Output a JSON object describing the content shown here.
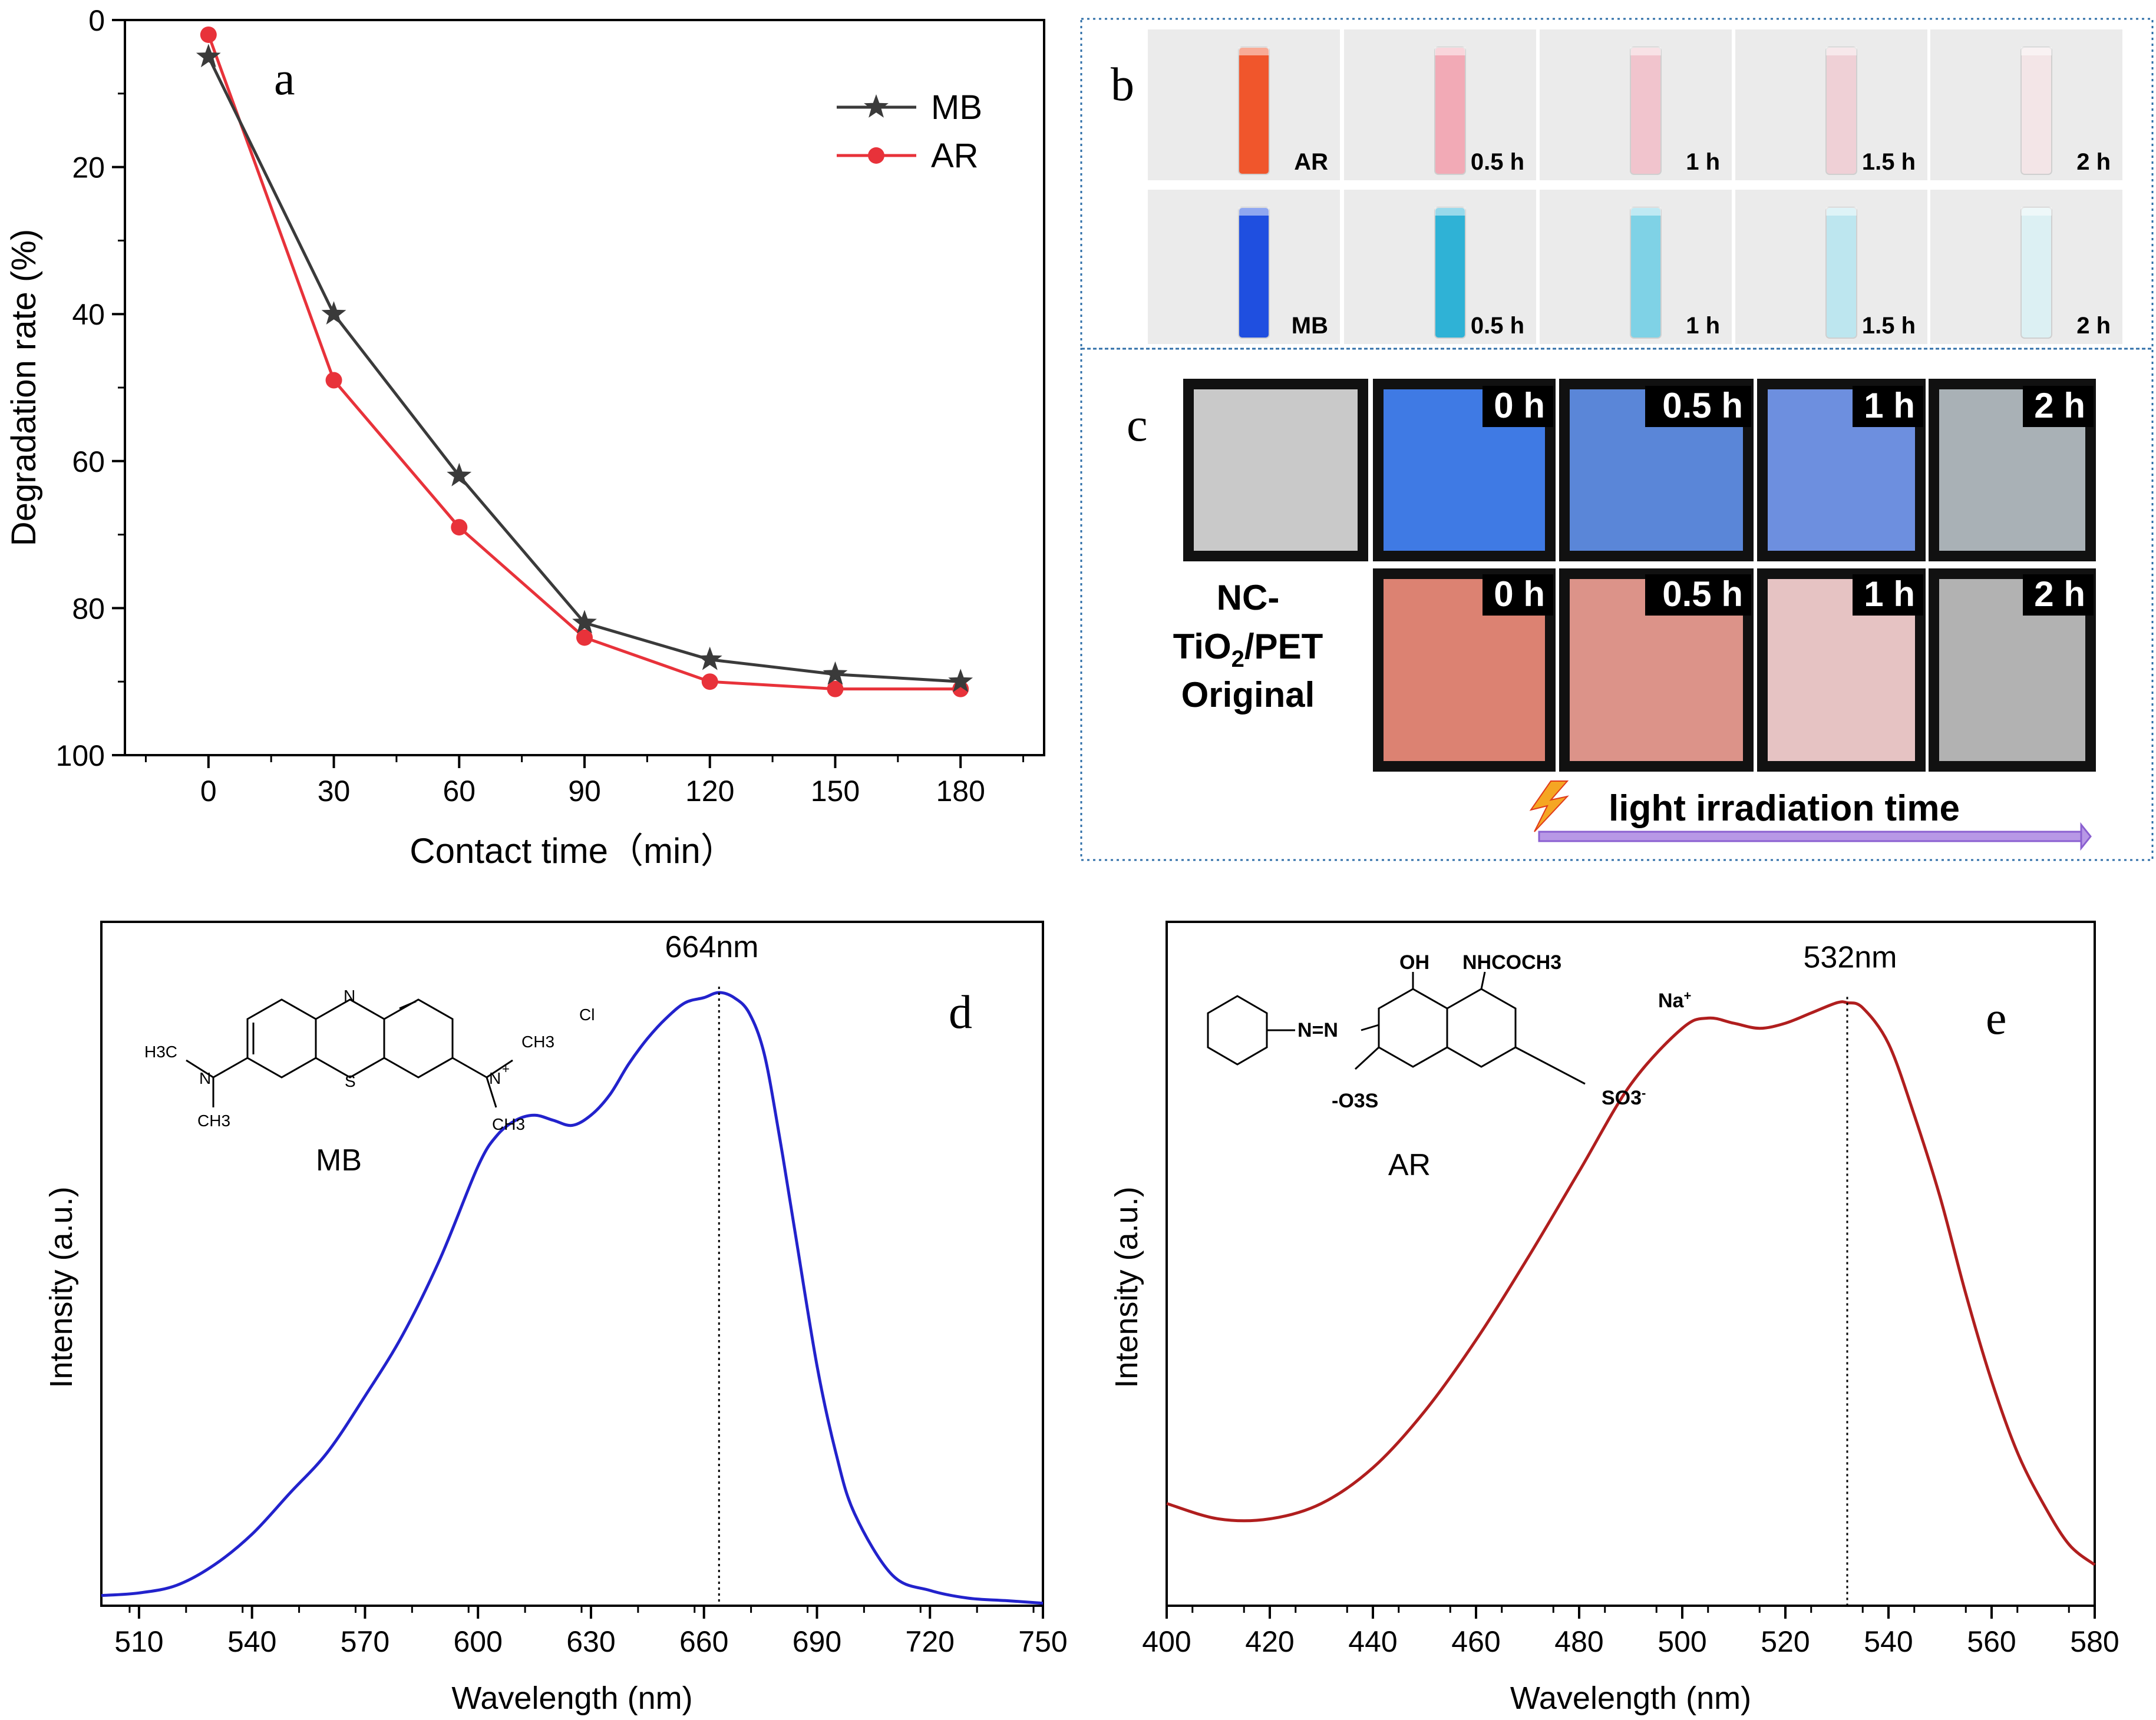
{
  "chart_data": [
    {
      "panel": "a",
      "type": "line",
      "xlabel": "Contact time（min）",
      "ylabel": "Degradation rate (%)",
      "x": [
        0,
        30,
        60,
        90,
        120,
        150,
        180
      ],
      "xticks": [
        "0",
        "30",
        "60",
        "90",
        "120",
        "150",
        "180"
      ],
      "yticks": [
        "0",
        "20",
        "40",
        "60",
        "80",
        "100"
      ],
      "xlim": [
        -20,
        200
      ],
      "ylim": [
        0,
        100
      ],
      "y_inverted": true,
      "legend_position": "top-right",
      "series": [
        {
          "name": "MB",
          "values": [
            5,
            40,
            62,
            82,
            87,
            89,
            90
          ],
          "color": "#3a3a3a",
          "marker": "star"
        },
        {
          "name": "AR",
          "values": [
            2,
            49,
            69,
            84,
            90,
            91,
            91
          ],
          "color": "#e8323a",
          "marker": "circle"
        }
      ]
    },
    {
      "panel": "d",
      "type": "line",
      "xlabel": "Wavelength (nm)",
      "ylabel": "Intensity (a.u.)",
      "xticks": [
        "510",
        "540",
        "570",
        "600",
        "630",
        "660",
        "690",
        "720",
        "750"
      ],
      "xlim": [
        500,
        750
      ],
      "ylim": [
        0,
        1.2
      ],
      "peak_label": "664nm",
      "peak_x": 664,
      "molecule_label": "MB",
      "series": [
        {
          "name": "",
          "color": "#2222cc",
          "x": [
            500,
            510,
            520,
            530,
            540,
            550,
            560,
            570,
            580,
            590,
            600,
            605,
            610,
            615,
            620,
            625,
            630,
            635,
            640,
            645,
            650,
            655,
            660,
            664,
            668,
            672,
            676,
            680,
            684,
            690,
            695,
            700,
            710,
            720,
            730,
            740,
            750
          ],
          "values": [
            0.02,
            0.025,
            0.04,
            0.08,
            0.14,
            0.22,
            0.3,
            0.41,
            0.53,
            0.68,
            0.86,
            0.92,
            0.95,
            0.96,
            0.95,
            0.94,
            0.96,
            1.0,
            1.06,
            1.11,
            1.15,
            1.18,
            1.19,
            1.2,
            1.19,
            1.16,
            1.08,
            0.92,
            0.74,
            0.47,
            0.3,
            0.18,
            0.06,
            0.03,
            0.015,
            0.01,
            0.005
          ]
        }
      ]
    },
    {
      "panel": "e",
      "type": "line",
      "xlabel": "Wavelength (nm)",
      "ylabel": "Intensity (a.u.)",
      "xticks": [
        "400",
        "420",
        "440",
        "460",
        "480",
        "500",
        "520",
        "540",
        "560",
        "580"
      ],
      "xlim": [
        400,
        580
      ],
      "ylim": [
        0,
        1.2
      ],
      "peak_label": "532nm",
      "peak_x": 532,
      "molecule_label": "AR",
      "series": [
        {
          "name": "",
          "color": "#b01e1e",
          "x": [
            400,
            410,
            420,
            430,
            440,
            450,
            460,
            470,
            480,
            490,
            500,
            505,
            510,
            515,
            520,
            525,
            530,
            532,
            535,
            540,
            545,
            550,
            555,
            560,
            565,
            570,
            575,
            580
          ],
          "values": [
            0.2,
            0.17,
            0.17,
            0.2,
            0.27,
            0.38,
            0.52,
            0.68,
            0.85,
            1.02,
            1.13,
            1.15,
            1.14,
            1.13,
            1.14,
            1.16,
            1.18,
            1.18,
            1.17,
            1.1,
            0.96,
            0.8,
            0.61,
            0.44,
            0.3,
            0.2,
            0.12,
            0.08
          ]
        }
      ]
    }
  ],
  "panels": {
    "a_letter": "a",
    "b_letter": "b",
    "c_letter": "c",
    "d_letter": "d",
    "e_letter": "e"
  },
  "photos_b": {
    "row1": {
      "labels": [
        "AR",
        "0.5 h",
        "1 h",
        "1.5 h",
        "2 h"
      ],
      "liquid_colors": [
        "#f0562c",
        "#f2aab6",
        "#f1c4cd",
        "#efd0d6",
        "#f3e5e7"
      ],
      "bg": "#ebebeb"
    },
    "row2": {
      "labels": [
        "MB",
        "0.5 h",
        "1 h",
        "1.5 h",
        "2 h"
      ],
      "liquid_colors": [
        "#1f4fe0",
        "#2fb2d6",
        "#7fd2e6",
        "#bde6ef",
        "#dcf0f3"
      ],
      "bg": "#ebebeb"
    }
  },
  "photos_c": {
    "row1": {
      "labels": [
        "",
        "0 h",
        "0.5 h",
        "1 h",
        "2 h"
      ],
      "colors": [
        "#c9c9c9",
        "#3f7ae4",
        "#5a86d8",
        "#6d8fdf",
        "#a9b1b6"
      ]
    },
    "row2": {
      "labels": [
        "0 h",
        "0.5 h",
        "1 h",
        "2 h"
      ],
      "colors": [
        "#dc8272",
        "#dc9389",
        "#e6c3c3",
        "#b2b2b2"
      ]
    },
    "original_label_line1": "NC-",
    "original_label_line2": "TiO",
    "original_label_sub": "2",
    "original_label_line2b": "/PET",
    "original_label_line3": "Original",
    "arrow_label": "light irradiation time"
  },
  "molecules": {
    "mb_atoms": {
      "n_top": "N",
      "s": "S",
      "h3c": "H3C",
      "n_left": "N",
      "ch3_left": "CH3",
      "n_right": "N",
      "plus": "+",
      "ch3_r1": "CH3",
      "ch3_r2": "CH3",
      "cl": "Cl"
    },
    "ar_atoms": {
      "oh": "OH",
      "nhcoch3": "NHCOCH3",
      "na": "Na",
      "na_charge": "+",
      "azo": "N=N",
      "so3_left": "-O3S",
      "so3_right": "SO3",
      "so3_charge": "-"
    }
  },
  "colors": {
    "axis": "#000000",
    "border_b": "#2f6fa8",
    "arrow": "#9b6fd3",
    "bolt": "#f5a623"
  }
}
